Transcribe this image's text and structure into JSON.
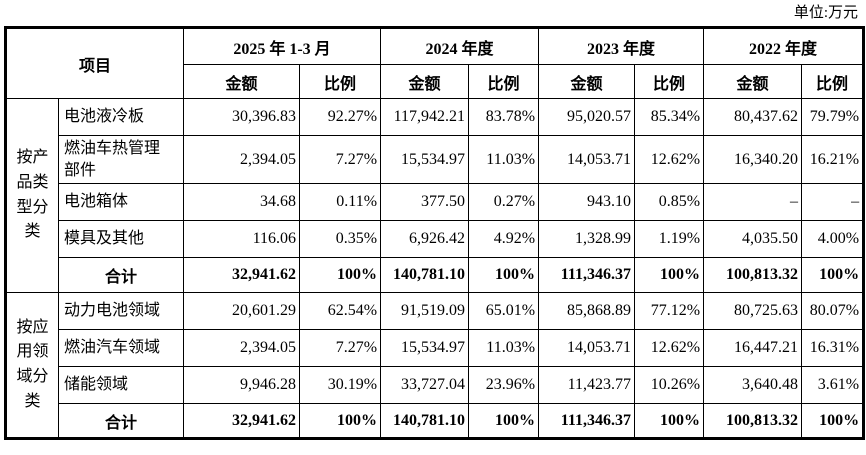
{
  "unit_label": "单位:万元",
  "table": {
    "header": {
      "item_label": "项目",
      "amount_label": "金额",
      "ratio_label": "比例",
      "periods": [
        {
          "label": "2025 年 1-3 月"
        },
        {
          "label": "2024 年度"
        },
        {
          "label": "2023 年度"
        },
        {
          "label": "2022 年度"
        }
      ]
    },
    "sections": [
      {
        "group": "按产品类型分类",
        "rows": [
          {
            "item": "电池液冷板",
            "values": [
              "30,396.83",
              "92.27%",
              "117,942.21",
              "83.78%",
              "95,020.57",
              "85.34%",
              "80,437.62",
              "79.79%"
            ]
          },
          {
            "item": "燃油车热管理部件",
            "values": [
              "2,394.05",
              "7.27%",
              "15,534.97",
              "11.03%",
              "14,053.71",
              "12.62%",
              "16,340.20",
              "16.21%"
            ]
          },
          {
            "item": "电池箱体",
            "values": [
              "34.68",
              "0.11%",
              "377.50",
              "0.27%",
              "943.10",
              "0.85%",
              "–",
              "–"
            ]
          },
          {
            "item": "模具及其他",
            "values": [
              "116.06",
              "0.35%",
              "6,926.42",
              "4.92%",
              "1,328.99",
              "1.19%",
              "4,035.50",
              "4.00%"
            ]
          }
        ],
        "total": {
          "label": "合计",
          "values": [
            "32,941.62",
            "100%",
            "140,781.10",
            "100%",
            "111,346.37",
            "100%",
            "100,813.32",
            "100%"
          ]
        }
      },
      {
        "group": "按应用领域分类",
        "rows": [
          {
            "item": "动力电池领域",
            "values": [
              "20,601.29",
              "62.54%",
              "91,519.09",
              "65.01%",
              "85,868.89",
              "77.12%",
              "80,725.63",
              "80.07%"
            ]
          },
          {
            "item": "燃油汽车领域",
            "values": [
              "2,394.05",
              "7.27%",
              "15,534.97",
              "11.03%",
              "14,053.71",
              "12.62%",
              "16,447.21",
              "16.31%"
            ]
          },
          {
            "item": "储能领域",
            "values": [
              "9,946.28",
              "30.19%",
              "33,727.04",
              "23.96%",
              "11,423.77",
              "10.26%",
              "3,640.48",
              "3.61%"
            ]
          }
        ],
        "total": {
          "label": "合计",
          "values": [
            "32,941.62",
            "100%",
            "140,781.10",
            "100%",
            "111,346.37",
            "100%",
            "100,813.32",
            "100%"
          ]
        }
      }
    ]
  }
}
